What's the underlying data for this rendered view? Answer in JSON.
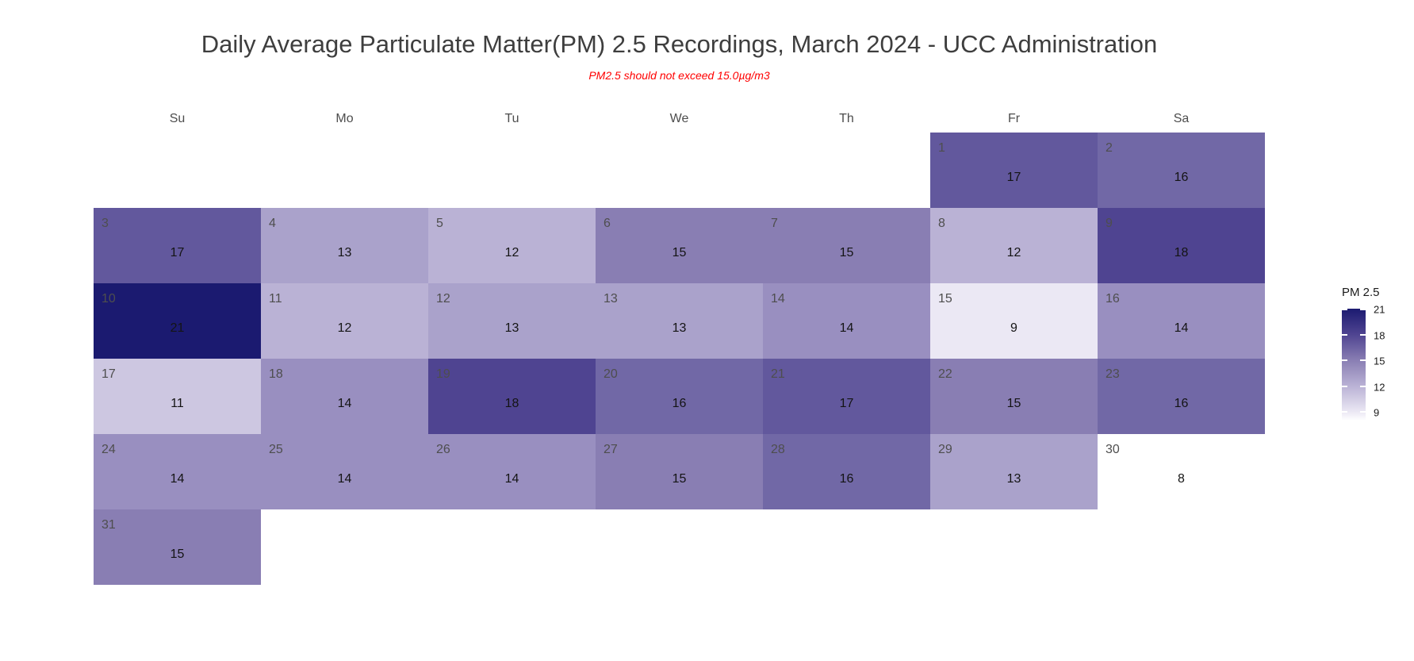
{
  "colors": {
    "background": "#ffffff",
    "title_gray": "#3e3e3e",
    "subtitle_red": "#ff0000",
    "day_number_gray": "#4e4e4e",
    "value_text": "#141414",
    "legend_tick_white": "#ffffff"
  },
  "color_scale": {
    "8": "#ffffff",
    "9": "#ebe8f4",
    "11": "#cdc7e1",
    "12": "#bab2d5",
    "13": "#aaa2cb",
    "14": "#998fc0",
    "15": "#897eb3",
    "16": "#7168a6",
    "17": "#62589d",
    "18": "#4f4491",
    "21": "#1b1a70"
  },
  "chart_data": {
    "type": "heatmap",
    "title": "Daily Average Particulate Matter(PM) 2.5 Recordings, March 2024 - UCC Administration",
    "subtitle": "PM2.5 should not exceed 15.0µg/m3",
    "x_categories": [
      "Su",
      "Mo",
      "Tu",
      "We",
      "Th",
      "Fr",
      "Sa"
    ],
    "unit": "µg/m3",
    "threshold": 15.0,
    "value_range": [
      8,
      21
    ],
    "legend": {
      "title": "PM 2.5",
      "ticks": [
        21,
        18,
        15,
        12,
        9
      ],
      "min": 8,
      "max": 21,
      "position": "right"
    },
    "days": [
      {
        "day": 1,
        "weekday": "Fr",
        "week": 1,
        "value": 17
      },
      {
        "day": 2,
        "weekday": "Sa",
        "week": 1,
        "value": 16
      },
      {
        "day": 3,
        "weekday": "Su",
        "week": 2,
        "value": 17
      },
      {
        "day": 4,
        "weekday": "Mo",
        "week": 2,
        "value": 13
      },
      {
        "day": 5,
        "weekday": "Tu",
        "week": 2,
        "value": 12
      },
      {
        "day": 6,
        "weekday": "We",
        "week": 2,
        "value": 15
      },
      {
        "day": 7,
        "weekday": "Th",
        "week": 2,
        "value": 15
      },
      {
        "day": 8,
        "weekday": "Fr",
        "week": 2,
        "value": 12
      },
      {
        "day": 9,
        "weekday": "Sa",
        "week": 2,
        "value": 18
      },
      {
        "day": 10,
        "weekday": "Su",
        "week": 3,
        "value": 21
      },
      {
        "day": 11,
        "weekday": "Mo",
        "week": 3,
        "value": 12
      },
      {
        "day": 12,
        "weekday": "Tu",
        "week": 3,
        "value": 13
      },
      {
        "day": 13,
        "weekday": "We",
        "week": 3,
        "value": 13
      },
      {
        "day": 14,
        "weekday": "Th",
        "week": 3,
        "value": 14
      },
      {
        "day": 15,
        "weekday": "Fr",
        "week": 3,
        "value": 9
      },
      {
        "day": 16,
        "weekday": "Sa",
        "week": 3,
        "value": 14
      },
      {
        "day": 17,
        "weekday": "Su",
        "week": 4,
        "value": 11
      },
      {
        "day": 18,
        "weekday": "Mo",
        "week": 4,
        "value": 14
      },
      {
        "day": 19,
        "weekday": "Tu",
        "week": 4,
        "value": 18
      },
      {
        "day": 20,
        "weekday": "We",
        "week": 4,
        "value": 16
      },
      {
        "day": 21,
        "weekday": "Th",
        "week": 4,
        "value": 17
      },
      {
        "day": 22,
        "weekday": "Fr",
        "week": 4,
        "value": 15
      },
      {
        "day": 23,
        "weekday": "Sa",
        "week": 4,
        "value": 16
      },
      {
        "day": 24,
        "weekday": "Su",
        "week": 5,
        "value": 14
      },
      {
        "day": 25,
        "weekday": "Mo",
        "week": 5,
        "value": 14
      },
      {
        "day": 26,
        "weekday": "Tu",
        "week": 5,
        "value": 14
      },
      {
        "day": 27,
        "weekday": "We",
        "week": 5,
        "value": 15
      },
      {
        "day": 28,
        "weekday": "Th",
        "week": 5,
        "value": 16
      },
      {
        "day": 29,
        "weekday": "Fr",
        "week": 5,
        "value": 13
      },
      {
        "day": 30,
        "weekday": "Sa",
        "week": 5,
        "value": 8
      },
      {
        "day": 31,
        "weekday": "Su",
        "week": 6,
        "value": 15
      }
    ]
  }
}
